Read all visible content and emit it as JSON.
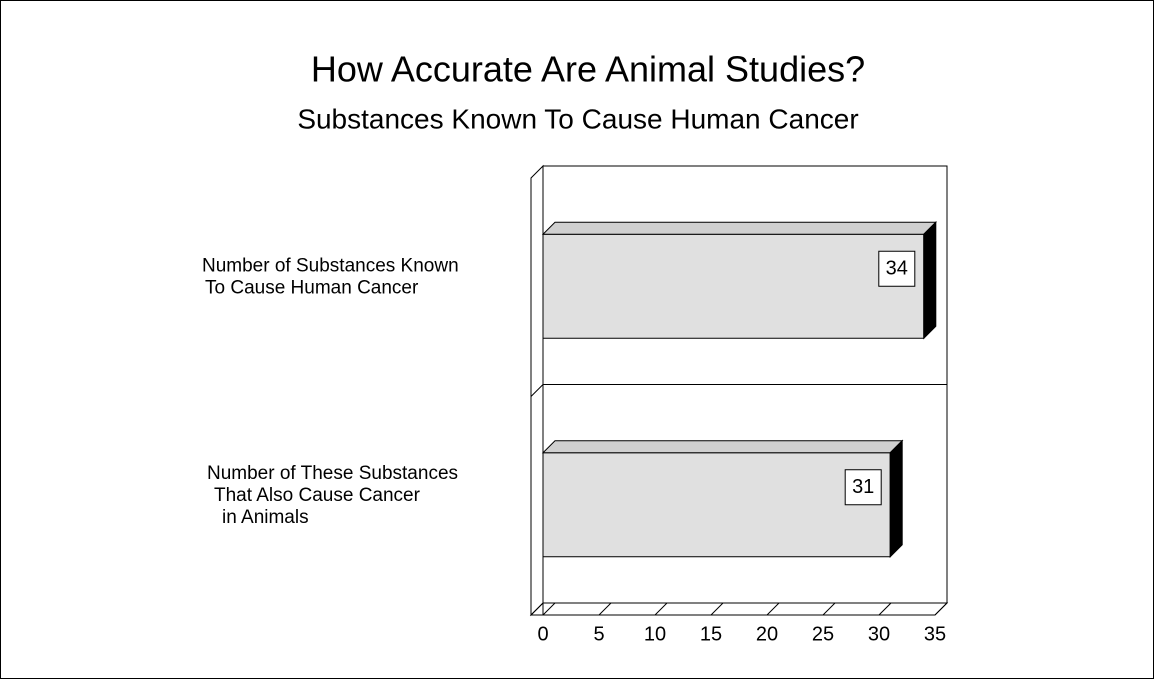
{
  "chart_data": {
    "type": "bar",
    "orientation": "horizontal",
    "title": "How Accurate Are Animal Studies?",
    "subtitle": "Substances Known To Cause Human Cancer",
    "categories": [
      [
        "Number of Substances Known",
        "To Cause Human Cancer"
      ],
      [
        "Number of These Substances",
        "That Also Cause Cancer",
        "in Animals"
      ]
    ],
    "values": [
      34,
      31
    ],
    "color": "#e0e0e0",
    "xlim": [
      0,
      35
    ],
    "xticks": [
      0,
      5,
      10,
      15,
      20,
      25,
      30,
      35
    ]
  }
}
